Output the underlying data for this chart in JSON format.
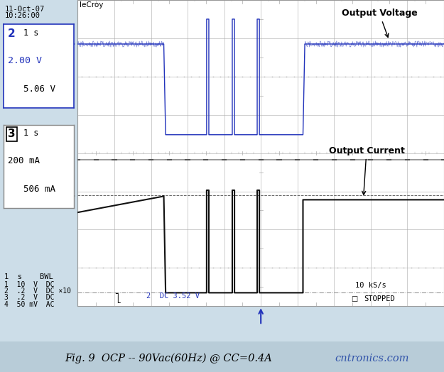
{
  "bg_color": "#ccdde8",
  "screen_bg": "#ffffff",
  "grid_color": "#aaaaaa",
  "blue_color": "#2233bb",
  "black_color": "#111111",
  "caption_bg": "#b8ccd8",
  "voltage_label": "Output Voltage",
  "current_label": "Output Current",
  "lecroy_text": "leCroy",
  "date_line1": "11-Oct-07",
  "date_line2": "10:26:00",
  "ch2_num": "2",
  "ch2_line1": "  1 s",
  "ch2_line2": "2.00 V",
  "ch2_line3": "     5.06 V",
  "ch3_num": "3",
  "ch3_line1": "  1 s",
  "ch3_line2": "200 mA",
  "ch3_line3": "     506 mA",
  "bottom_bwl": "1  s    BWL",
  "bottom_ch1": "1  10  V  DC",
  "bottom_ch2": "2  .2  V  DC ×10",
  "bottom_ch3": "3  .2  V  DC",
  "bottom_ch4": "4  50 mV  AC",
  "bottom_dc": "2  DC 3.52 V",
  "bottom_rate": "10 kS/s",
  "bottom_stop": "STOPPED",
  "caption_main": "Fig. 9  OCP -- 90Vac(60Hz) @ CC=0.4A",
  "caption_web": "cntronics.com"
}
